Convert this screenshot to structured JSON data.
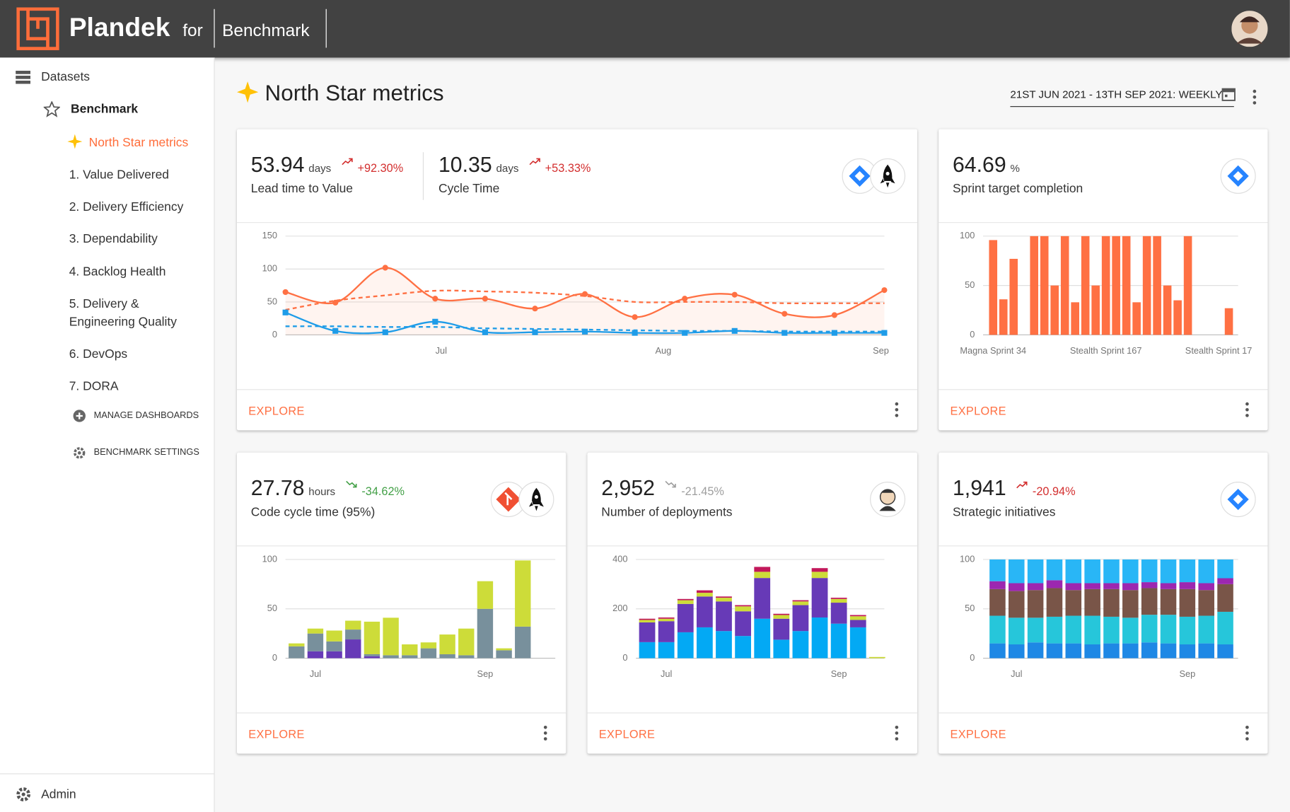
{
  "header": {
    "brand": "Plandek",
    "for": "for",
    "workspace": "Benchmark"
  },
  "sidebar": {
    "datasets": "Datasets",
    "benchmark": "Benchmark",
    "items": [
      "North Star metrics",
      "1. Value Delivered",
      "2. Delivery Efficiency",
      "3. Dependability",
      "4. Backlog Health",
      "5. Delivery & Engineering Quality",
      "6. DevOps",
      "7. DORA"
    ],
    "manage": "MANAGE DASHBOARDS",
    "settings": "BENCHMARK SETTINGS",
    "admin": "Admin"
  },
  "page": {
    "title": "North Star metrics",
    "date_range": "21ST JUN 2021 - 13TH SEP 2021: WEEKLY"
  },
  "cards": [
    {
      "metrics": [
        {
          "value": "53.94",
          "unit": "days",
          "change": "+92.30%",
          "change_color": "#d32f2f",
          "label": "Lead time to Value"
        },
        {
          "value": "10.35",
          "unit": "days",
          "change": "+53.33%",
          "change_color": "#d32f2f",
          "label": "Cycle Time"
        }
      ],
      "explore": "EXPLORE",
      "chart": {
        "type": "line",
        "x": [
          0,
          1,
          2,
          3,
          4,
          5,
          6,
          7,
          8,
          9,
          10,
          11,
          12
        ],
        "xlim": [
          0,
          12
        ],
        "xticks": [
          {
            "value": 3.12,
            "label": "Jul"
          },
          {
            "value": 7.57,
            "label": "Aug"
          },
          {
            "value": 11.93,
            "label": "Sep"
          }
        ],
        "ylim": [
          0,
          150
        ],
        "yticks": [
          0,
          50,
          100,
          150
        ],
        "grid": true,
        "series": [
          {
            "color": "#ff7043",
            "marker": "circle",
            "values": [
              65,
              49,
              102,
              55,
              55,
              40,
              62,
              27,
              55,
              61,
              32,
              30,
              68
            ]
          },
          {
            "color": "#ff7043",
            "dashed": true,
            "values": [
              38,
              52,
              60,
              67,
              66,
              64,
              59,
              50,
              50,
              50,
              48,
              48,
              48
            ]
          },
          {
            "color": "#1e9ce8",
            "marker": "square",
            "values": [
              34,
              6,
              4,
              20,
              4,
              4,
              5,
              3,
              3,
              6,
              3,
              3,
              3
            ]
          },
          {
            "color": "#1e9ce8",
            "dashed": true,
            "values": [
              13,
              13,
              12,
              12,
              10,
              9,
              8,
              7,
              6,
              6,
              5,
              5,
              5
            ]
          }
        ]
      }
    },
    {
      "metrics": [
        {
          "value": "64.69",
          "unit": "%",
          "label": "Sprint target completion"
        }
      ],
      "explore": "EXPLORE",
      "chart": {
        "type": "bar",
        "color": "#ff7043",
        "categories": [
          "Magna Sprint 34",
          null,
          null,
          null,
          null,
          null,
          null,
          null,
          null,
          null,
          null,
          "Stealth Sprint 167",
          null,
          null,
          null,
          null,
          null,
          null,
          null,
          null,
          null,
          null,
          "Stealth Sprint 17",
          null
        ],
        "values": [
          96,
          36,
          77,
          0,
          100,
          100,
          50,
          100,
          33,
          100,
          50,
          100,
          100,
          100,
          33,
          100,
          100,
          50,
          35,
          100,
          0,
          0,
          0,
          27
        ],
        "ylim": [
          0,
          100
        ],
        "yticks": [
          0,
          50,
          100
        ],
        "grid": true
      }
    },
    {
      "metrics": [
        {
          "value": "27.78",
          "unit": "hours",
          "change": "-34.62%",
          "change_color": "#43a047",
          "label": "Code cycle time (95%)"
        }
      ],
      "explore": "EXPLORE",
      "chart": {
        "type": "stacked_bar",
        "categories": [
          null,
          "Jul",
          null,
          null,
          null,
          null,
          null,
          null,
          null,
          null,
          "Sep",
          null,
          null
        ],
        "ylim": [
          0,
          100
        ],
        "yticks": [
          0,
          50,
          100
        ],
        "grid": true,
        "series": [
          {
            "color": "#673ab7",
            "values": [
              0,
              7,
              7,
              19,
              2,
              0,
              0,
              0,
              0,
              0,
              0,
              0,
              0
            ]
          },
          {
            "color": "#78909c",
            "values": [
              12,
              18,
              10,
              10,
              2,
              3,
              3,
              10,
              4,
              3,
              50,
              8,
              32
            ]
          },
          {
            "color": "#cddc39",
            "values": [
              3,
              5,
              11,
              9,
              33,
              38,
              11,
              6,
              20,
              27,
              28,
              2,
              67
            ]
          }
        ]
      }
    },
    {
      "metrics": [
        {
          "value": "2,952",
          "change": "-21.45%",
          "change_color": "#9e9e9e",
          "label": "Number of deployments"
        }
      ],
      "explore": "EXPLORE",
      "chart": {
        "type": "stacked_bar",
        "categories": [
          null,
          "Jul",
          null,
          null,
          null,
          null,
          null,
          null,
          null,
          null,
          "Sep",
          null,
          null
        ],
        "ylim": [
          0,
          400
        ],
        "yticks": [
          0,
          200,
          400
        ],
        "grid": true,
        "series": [
          {
            "color": "#03a9f4",
            "values": [
              65,
              65,
              105,
              125,
              110,
              90,
              160,
              75,
              110,
              165,
              140,
              125,
              0
            ]
          },
          {
            "color": "#673ab7",
            "values": [
              80,
              85,
              115,
              125,
              120,
              100,
              165,
              85,
              105,
              160,
              85,
              30,
              0
            ]
          },
          {
            "color": "#cddc39",
            "values": [
              10,
              10,
              15,
              15,
              15,
              20,
              25,
              15,
              15,
              25,
              15,
              15,
              5
            ]
          },
          {
            "color": "#c2185b",
            "values": [
              5,
              5,
              5,
              10,
              5,
              5,
              20,
              5,
              5,
              15,
              5,
              5,
              0
            ]
          }
        ]
      }
    },
    {
      "metrics": [
        {
          "value": "1,941",
          "change": "-20.94%",
          "change_color": "#d32f2f",
          "label": "Strategic initiatives"
        }
      ],
      "explore": "EXPLORE",
      "chart": {
        "type": "stacked_bar",
        "categories": [
          null,
          "Jul",
          null,
          null,
          null,
          null,
          null,
          null,
          null,
          null,
          "Sep",
          null,
          null
        ],
        "ylim": [
          0,
          100
        ],
        "yticks": [
          0,
          50,
          100
        ],
        "grid": true,
        "series": [
          {
            "color": "#1e88e5",
            "values": [
              15,
              14,
              16,
              15,
              15,
              14,
              15,
              15,
              16,
              15,
              14,
              15,
              14
            ]
          },
          {
            "color": "#26c6da",
            "values": [
              28,
              27,
              25,
              27,
              28,
              29,
              27,
              26,
              28,
              29,
              28,
              28,
              33
            ]
          },
          {
            "color": "#795548",
            "values": [
              27,
              27,
              28,
              29,
              26,
              27,
              28,
              28,
              27,
              26,
              28,
              26,
              28
            ]
          },
          {
            "color": "#9c27b0",
            "values": [
              8,
              8,
              7,
              8,
              7,
              6,
              6,
              7,
              6,
              6,
              7,
              7,
              6
            ]
          },
          {
            "color": "#29b6f6",
            "values": [
              22,
              24,
              24,
              21,
              24,
              24,
              24,
              24,
              23,
              24,
              23,
              24,
              19
            ]
          }
        ]
      }
    }
  ]
}
